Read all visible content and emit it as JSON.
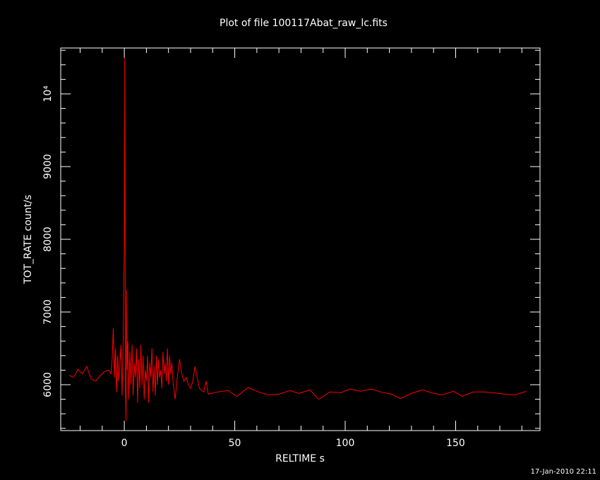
{
  "chart_data": {
    "type": "line",
    "title": "Plot of file 100117Abat_raw_lc.fits",
    "xlabel": "RELTIME  s",
    "ylabel": "TOT_RATE  count/s",
    "footer": "17-Jan-2010 22:11",
    "xlim": [
      -28.8,
      188.2
    ],
    "ylim": [
      5369,
      10631
    ],
    "xticks": [
      0,
      50,
      100,
      150
    ],
    "yticks": [
      6000,
      7000,
      8000,
      9000,
      {
        "value": 10000,
        "label": "10⁴"
      }
    ],
    "xminorticks": [
      -20,
      -10,
      10,
      20,
      30,
      40,
      60,
      70,
      80,
      90,
      110,
      120,
      130,
      140,
      160,
      170,
      180
    ],
    "yminorticks": [
      5400,
      5600,
      5800,
      6200,
      6400,
      6600,
      6800,
      7200,
      7400,
      7600,
      7800,
      8200,
      8400,
      8600,
      8800,
      9200,
      9400,
      9600,
      9800,
      10200,
      10400,
      10600
    ],
    "x": [
      -25,
      -23,
      -21,
      -19,
      -17,
      -15,
      -13,
      -11,
      -9,
      -7,
      -6,
      -5.5,
      -5,
      -4.5,
      -4,
      -3.5,
      -3,
      -2.5,
      -2,
      -1.5,
      -1,
      -0.5,
      0,
      0.2,
      0.5,
      0.8,
      1,
      1.3,
      1.6,
      2,
      2.5,
      3,
      3.5,
      4,
      4.5,
      5,
      5.5,
      6,
      6.5,
      7,
      7.5,
      8,
      8.5,
      9,
      9.5,
      10,
      10.5,
      11,
      11.5,
      12,
      12.5,
      13,
      13.5,
      14,
      14.5,
      15,
      15.5,
      16,
      16.5,
      17,
      17.5,
      18,
      18.5,
      19,
      19.5,
      20,
      20.5,
      21,
      21.5,
      22,
      23,
      24,
      25,
      26,
      27,
      28,
      29,
      30,
      31,
      32,
      33,
      34,
      36,
      37,
      38,
      42,
      47,
      51,
      56,
      61,
      65,
      70,
      75,
      79,
      84,
      88,
      93,
      98,
      102,
      107,
      112,
      116,
      121,
      125,
      130,
      135,
      139,
      144,
      149,
      153,
      158,
      163,
      167,
      172,
      177,
      182
    ],
    "series": [
      {
        "color": "#ff0000",
        "values": [
          6130,
          6100,
          6210,
          6150,
          6250,
          6080,
          6050,
          6120,
          6180,
          6200,
          6150,
          6350,
          6780,
          6100,
          6500,
          5900,
          6400,
          6050,
          6300,
          6550,
          5850,
          6650,
          7950,
          10500,
          5950,
          5500,
          7300,
          6200,
          6600,
          5800,
          6450,
          6000,
          6550,
          5850,
          6300,
          6100,
          6500,
          5750,
          6350,
          5950,
          6550,
          6000,
          6400,
          5800,
          6200,
          6050,
          6400,
          5750,
          6300,
          6100,
          6500,
          5900,
          6250,
          5850,
          6400,
          6000,
          6350,
          6100,
          6200,
          5950,
          6450,
          6150,
          6300,
          6050,
          6500,
          6000,
          6400,
          6150,
          6300,
          6050,
          5800,
          6100,
          6350,
          6150,
          6050,
          6100,
          6000,
          5950,
          6050,
          6250,
          6100,
          5950,
          5900,
          6050,
          5870,
          5900,
          5920,
          5840,
          5960,
          5900,
          5860,
          5870,
          5920,
          5880,
          5930,
          5800,
          5900,
          5890,
          5940,
          5910,
          5940,
          5900,
          5870,
          5810,
          5880,
          5930,
          5890,
          5860,
          5910,
          5840,
          5900,
          5900,
          5890,
          5870,
          5860,
          5910
        ]
      }
    ]
  }
}
